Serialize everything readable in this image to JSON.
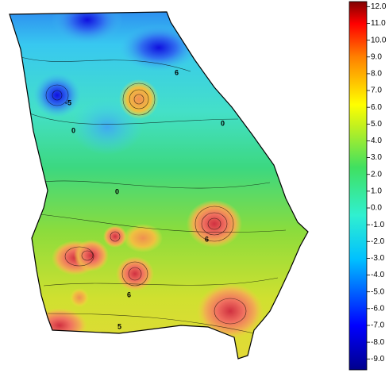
{
  "colorbar": {
    "lim": [
      -9.65,
      12.3
    ],
    "ticks": [
      {
        "value": 12,
        "label": "12.0"
      },
      {
        "value": 11,
        "label": "11.0"
      },
      {
        "value": 10,
        "label": "10.0"
      },
      {
        "value": 9,
        "label": "9.0"
      },
      {
        "value": 8,
        "label": "8.0"
      },
      {
        "value": 7,
        "label": "7.0"
      },
      {
        "value": 6,
        "label": "6.0"
      },
      {
        "value": 5,
        "label": "5.0"
      },
      {
        "value": 4,
        "label": "4.0"
      },
      {
        "value": 3,
        "label": "3.0"
      },
      {
        "value": 2,
        "label": "2.0"
      },
      {
        "value": 1,
        "label": "1.0"
      },
      {
        "value": 0,
        "label": "0.0"
      },
      {
        "value": -1,
        "label": "-1.0"
      },
      {
        "value": -2,
        "label": "-2.0"
      },
      {
        "value": -3,
        "label": "-3.0"
      },
      {
        "value": -4,
        "label": "-4.0"
      },
      {
        "value": -5,
        "label": "-5.0"
      },
      {
        "value": -6,
        "label": "-6.0"
      },
      {
        "value": -7,
        "label": "-7.0"
      },
      {
        "value": -8,
        "label": "-8.0"
      },
      {
        "value": -9,
        "label": "-9.0"
      }
    ]
  },
  "contour_labels": [
    "0",
    "6",
    "0",
    "-5",
    "6",
    "5",
    "0",
    "6"
  ]
}
